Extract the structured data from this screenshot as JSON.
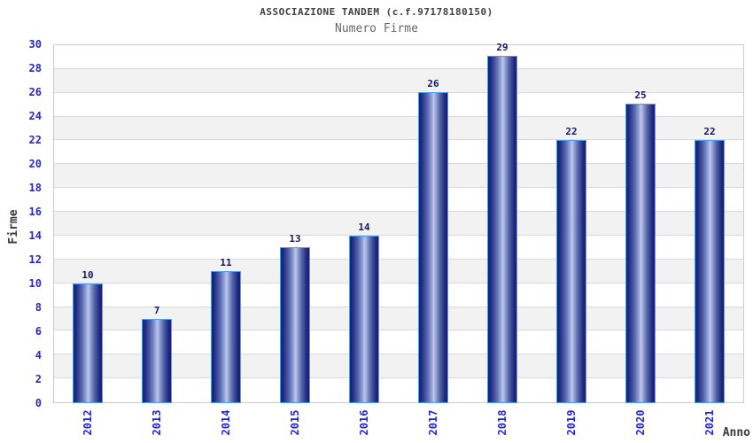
{
  "chart_data": {
    "type": "bar",
    "title": "ASSOCIAZIONE TANDEM (c.f.97178180150)",
    "subtitle": "Numero Firme",
    "xlabel": "Anno",
    "ylabel": "Firme",
    "categories": [
      "2012",
      "2013",
      "2014",
      "2015",
      "2016",
      "2017",
      "2018",
      "2019",
      "2020",
      "2021"
    ],
    "values": [
      10,
      7,
      11,
      13,
      14,
      26,
      29,
      22,
      25,
      22
    ],
    "ylim": [
      0,
      30
    ],
    "ytick_step": 2,
    "grid": "horizontal",
    "legend_position": "none",
    "colors": {
      "axis_tick_label": "#2626cf",
      "value_label": "#15156e",
      "title": "#404040",
      "subtitle": "#686868",
      "band_gray": "#f2f2f2",
      "band_white": "#ffffff",
      "gridline": "#d9d9d9",
      "plot_border": "#cccccc",
      "bar_dark": "#161f6b",
      "bar_light": "#bdc8ec",
      "bar_border": "#4f9df0",
      "background": "#ffffff"
    }
  }
}
